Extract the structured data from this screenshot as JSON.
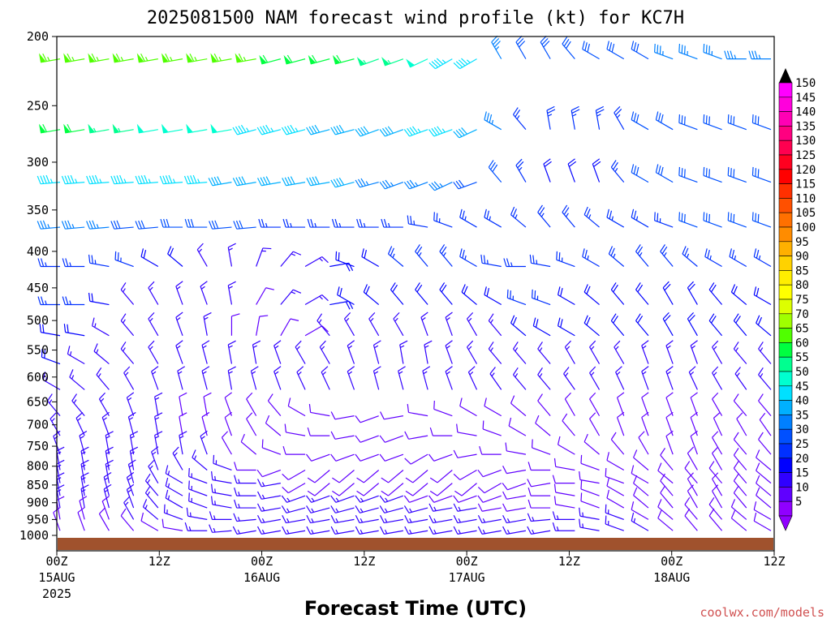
{
  "chart_data": {
    "type": "wind_barbs",
    "title": "2025081500 NAM forecast wind profile (kt) for KC7H",
    "xlabel": "Forecast Time (UTC)",
    "ylabel": "",
    "credit": "coolwx.com/models",
    "y_scale": "log-pressure (hPa), inverted",
    "y_ticks": [
      "200",
      "250",
      "300",
      "350",
      "400",
      "450",
      "500",
      "550",
      "600",
      "650",
      "700",
      "750",
      "800",
      "850",
      "900",
      "950",
      "1000"
    ],
    "x_ticks": [
      {
        "hour": 0,
        "line1": "00Z",
        "line2": "15AUG",
        "line3": "2025"
      },
      {
        "hour": 12,
        "line1": "12Z",
        "line2": "",
        "line3": ""
      },
      {
        "hour": 24,
        "line1": "00Z",
        "line2": "16AUG",
        "line3": ""
      },
      {
        "hour": 36,
        "line1": "12Z",
        "line2": "",
        "line3": ""
      },
      {
        "hour": 48,
        "line1": "00Z",
        "line2": "17AUG",
        "line3": ""
      },
      {
        "hour": 60,
        "line1": "12Z",
        "line2": "",
        "line3": ""
      },
      {
        "hour": 72,
        "line1": "00Z",
        "line2": "18AUG",
        "line3": ""
      },
      {
        "hour": 84,
        "line1": "12Z",
        "line2": "",
        "line3": ""
      }
    ],
    "colorbar": {
      "labels": [
        "150",
        "145",
        "140",
        "135",
        "130",
        "125",
        "120",
        "115",
        "110",
        "105",
        "100",
        "95",
        "90",
        "85",
        "80",
        "75",
        "70",
        "65",
        "60",
        "55",
        "50",
        "45",
        "40",
        "35",
        "30",
        "25",
        "20",
        "15",
        "10",
        "5"
      ],
      "colors": [
        "#ff00ff",
        "#ff00dc",
        "#ff00b4",
        "#ff0080",
        "#ff0050",
        "#ff0020",
        "#ff0000",
        "#ff3000",
        "#ff5000",
        "#ff7000",
        "#ff8c00",
        "#ffb000",
        "#ffd200",
        "#ffee00",
        "#ffff00",
        "#ddff00",
        "#a0ff00",
        "#50ff00",
        "#00ff40",
        "#00ff90",
        "#00ffd0",
        "#00e0ff",
        "#00b0ff",
        "#0080ff",
        "#0050ff",
        "#0030ff",
        "#0000ff",
        "#3000ff",
        "#6000ff",
        "#9000ff"
      ]
    },
    "terrain_color": "#a0522d",
    "levels": [
      {
        "p": 215,
        "spd": [
          65,
          65,
          65,
          65,
          65,
          65,
          65,
          65,
          65,
          60,
          60,
          60,
          60,
          55,
          55,
          50,
          45,
          45,
          35,
          30,
          30,
          30,
          30,
          30,
          30,
          35,
          35,
          35,
          35,
          35
        ],
        "dir": [
          260,
          260,
          260,
          260,
          260,
          260,
          260,
          260,
          260,
          255,
          255,
          255,
          255,
          250,
          250,
          245,
          240,
          240,
          330,
          330,
          330,
          320,
          300,
          300,
          300,
          290,
          290,
          290,
          270,
          270
        ]
      },
      {
        "p": 270,
        "spd": [
          60,
          60,
          55,
          55,
          50,
          50,
          50,
          50,
          45,
          45,
          45,
          40,
          40,
          40,
          40,
          45,
          45,
          40,
          35,
          25,
          25,
          25,
          25,
          25,
          30,
          30,
          30,
          30,
          30,
          30
        ],
        "dir": [
          260,
          260,
          260,
          260,
          260,
          260,
          260,
          260,
          255,
          255,
          255,
          255,
          255,
          250,
          250,
          250,
          250,
          245,
          300,
          320,
          350,
          350,
          350,
          330,
          300,
          300,
          290,
          290,
          290,
          290
        ]
      },
      {
        "p": 320,
        "spd": [
          45,
          45,
          45,
          45,
          45,
          45,
          45,
          40,
          40,
          40,
          40,
          40,
          40,
          35,
          35,
          35,
          35,
          30,
          30,
          25,
          20,
          20,
          20,
          25,
          30,
          30,
          30,
          30,
          30,
          30
        ],
        "dir": [
          265,
          265,
          265,
          265,
          265,
          265,
          265,
          260,
          260,
          260,
          260,
          260,
          255,
          255,
          250,
          250,
          245,
          250,
          320,
          330,
          340,
          340,
          340,
          320,
          300,
          300,
          290,
          290,
          290,
          290
        ]
      },
      {
        "p": 370,
        "spd": [
          35,
          35,
          35,
          30,
          30,
          30,
          30,
          30,
          30,
          25,
          25,
          25,
          25,
          25,
          25,
          25,
          25,
          25,
          25,
          25,
          25,
          25,
          25,
          25,
          25,
          25,
          30,
          30,
          30,
          30
        ],
        "dir": [
          265,
          265,
          265,
          265,
          265,
          270,
          270,
          265,
          265,
          270,
          270,
          270,
          270,
          270,
          270,
          280,
          290,
          300,
          300,
          310,
          320,
          320,
          310,
          300,
          300,
          290,
          290,
          290,
          290,
          290
        ]
      },
      {
        "p": 420,
        "spd": [
          25,
          25,
          25,
          25,
          20,
          20,
          15,
          15,
          15,
          15,
          15,
          20,
          20,
          20,
          25,
          25,
          25,
          25,
          25,
          25,
          25,
          25,
          25,
          25,
          25,
          25,
          25,
          25,
          25,
          25
        ],
        "dir": [
          270,
          270,
          280,
          290,
          300,
          310,
          330,
          350,
          20,
          40,
          60,
          80,
          290,
          300,
          310,
          320,
          320,
          300,
          280,
          270,
          280,
          290,
          300,
          310,
          320,
          320,
          310,
          300,
          300,
          300
        ]
      },
      {
        "p": 475,
        "spd": [
          25,
          25,
          20,
          15,
          15,
          15,
          15,
          15,
          10,
          15,
          15,
          20,
          20,
          20,
          20,
          20,
          20,
          20,
          20,
          25,
          25,
          20,
          20,
          20,
          20,
          20,
          20,
          20,
          20,
          20
        ],
        "dir": [
          270,
          270,
          280,
          320,
          330,
          340,
          340,
          350,
          30,
          40,
          60,
          80,
          300,
          310,
          320,
          320,
          320,
          310,
          300,
          290,
          290,
          300,
          310,
          320,
          320,
          330,
          330,
          320,
          310,
          300
        ]
      },
      {
        "p": 525,
        "spd": [
          20,
          20,
          15,
          15,
          15,
          15,
          15,
          10,
          10,
          10,
          10,
          15,
          15,
          15,
          15,
          15,
          15,
          15,
          15,
          20,
          20,
          20,
          20,
          20,
          20,
          20,
          20,
          20,
          20,
          20
        ],
        "dir": [
          280,
          280,
          300,
          320,
          330,
          340,
          350,
          0,
          10,
          30,
          60,
          320,
          330,
          330,
          330,
          340,
          340,
          330,
          320,
          310,
          300,
          300,
          310,
          320,
          320,
          330,
          330,
          320,
          320,
          310
        ]
      },
      {
        "p": 575,
        "spd": [
          20,
          15,
          15,
          15,
          15,
          15,
          15,
          15,
          15,
          15,
          15,
          15,
          15,
          15,
          15,
          15,
          15,
          15,
          15,
          15,
          15,
          15,
          15,
          15,
          15,
          15,
          15,
          15,
          15,
          15
        ],
        "dir": [
          290,
          300,
          310,
          320,
          330,
          340,
          345,
          350,
          350,
          340,
          330,
          330,
          340,
          345,
          350,
          350,
          340,
          330,
          320,
          320,
          320,
          330,
          330,
          330,
          340,
          340,
          340,
          330,
          320,
          320
        ]
      },
      {
        "p": 625,
        "spd": [
          15,
          15,
          15,
          15,
          15,
          15,
          15,
          15,
          15,
          15,
          15,
          15,
          15,
          15,
          15,
          15,
          15,
          15,
          15,
          15,
          15,
          15,
          15,
          15,
          15,
          15,
          15,
          15,
          15,
          15
        ],
        "dir": [
          300,
          310,
          320,
          330,
          340,
          345,
          345,
          350,
          345,
          340,
          335,
          335,
          340,
          345,
          345,
          345,
          340,
          335,
          325,
          320,
          320,
          325,
          330,
          335,
          340,
          340,
          335,
          330,
          325,
          320
        ]
      },
      {
        "p": 680,
        "spd": [
          15,
          15,
          15,
          15,
          15,
          10,
          10,
          10,
          10,
          10,
          10,
          10,
          10,
          10,
          10,
          10,
          10,
          10,
          10,
          10,
          10,
          10,
          10,
          10,
          10,
          10,
          10,
          10,
          10,
          10
        ],
        "dir": [
          320,
          320,
          330,
          340,
          350,
          350,
          350,
          340,
          330,
          320,
          300,
          280,
          260,
          250,
          260,
          280,
          290,
          300,
          300,
          310,
          320,
          330,
          330,
          340,
          340,
          340,
          340,
          330,
          320,
          320
        ]
      },
      {
        "p": 725,
        "spd": [
          15,
          15,
          15,
          15,
          15,
          10,
          10,
          10,
          10,
          10,
          10,
          10,
          10,
          10,
          10,
          10,
          10,
          10,
          10,
          10,
          10,
          10,
          10,
          10,
          10,
          10,
          10,
          10,
          10,
          10
        ],
        "dir": [
          330,
          335,
          340,
          345,
          350,
          350,
          345,
          340,
          330,
          310,
          280,
          270,
          260,
          250,
          250,
          260,
          270,
          280,
          290,
          300,
          310,
          320,
          330,
          340,
          340,
          340,
          340,
          335,
          330,
          325
        ]
      },
      {
        "p": 770,
        "spd": [
          15,
          15,
          15,
          15,
          15,
          15,
          15,
          10,
          10,
          10,
          10,
          10,
          10,
          10,
          10,
          10,
          10,
          10,
          10,
          10,
          10,
          10,
          10,
          10,
          10,
          10,
          10,
          10,
          10,
          10
        ],
        "dir": [
          340,
          345,
          350,
          350,
          350,
          350,
          340,
          330,
          310,
          290,
          270,
          250,
          250,
          250,
          250,
          240,
          250,
          260,
          270,
          280,
          290,
          300,
          310,
          320,
          330,
          340,
          340,
          330,
          320,
          320
        ]
      },
      {
        "p": 810,
        "spd": [
          15,
          15,
          15,
          15,
          15,
          15,
          15,
          15,
          10,
          10,
          10,
          10,
          10,
          10,
          10,
          10,
          10,
          10,
          10,
          10,
          10,
          10,
          10,
          10,
          10,
          10,
          10,
          10,
          10,
          10
        ],
        "dir": [
          350,
          350,
          350,
          350,
          340,
          330,
          310,
          290,
          270,
          250,
          240,
          230,
          230,
          230,
          230,
          230,
          230,
          240,
          250,
          260,
          270,
          280,
          290,
          300,
          310,
          320,
          330,
          330,
          320,
          310
        ]
      },
      {
        "p": 845,
        "spd": [
          15,
          15,
          15,
          15,
          15,
          15,
          15,
          15,
          15,
          15,
          10,
          10,
          10,
          10,
          10,
          10,
          10,
          10,
          10,
          10,
          10,
          10,
          10,
          10,
          10,
          10,
          10,
          10,
          10,
          10
        ],
        "dir": [
          350,
          350,
          350,
          345,
          330,
          300,
          290,
          280,
          270,
          260,
          240,
          230,
          230,
          230,
          230,
          230,
          230,
          230,
          240,
          250,
          260,
          270,
          280,
          290,
          300,
          310,
          320,
          320,
          320,
          310
        ]
      },
      {
        "p": 880,
        "spd": [
          15,
          15,
          15,
          15,
          15,
          15,
          15,
          15,
          15,
          15,
          15,
          15,
          15,
          15,
          15,
          10,
          10,
          10,
          10,
          10,
          10,
          10,
          10,
          10,
          10,
          10,
          10,
          10,
          10,
          10
        ],
        "dir": [
          350,
          350,
          345,
          340,
          320,
          300,
          290,
          280,
          270,
          260,
          250,
          250,
          250,
          250,
          250,
          250,
          250,
          250,
          250,
          260,
          270,
          280,
          290,
          300,
          310,
          320,
          330,
          330,
          320,
          310
        ]
      },
      {
        "p": 915,
        "spd": [
          15,
          15,
          15,
          15,
          15,
          15,
          15,
          15,
          15,
          15,
          15,
          15,
          15,
          15,
          15,
          15,
          15,
          15,
          10,
          10,
          10,
          10,
          10,
          10,
          10,
          10,
          10,
          10,
          10,
          10
        ],
        "dir": [
          350,
          350,
          345,
          340,
          320,
          300,
          290,
          280,
          270,
          260,
          255,
          255,
          255,
          255,
          255,
          255,
          260,
          260,
          260,
          260,
          270,
          280,
          290,
          300,
          310,
          320,
          330,
          330,
          320,
          310
        ]
      },
      {
        "p": 950,
        "spd": [
          10,
          10,
          10,
          15,
          15,
          15,
          15,
          15,
          15,
          15,
          15,
          15,
          15,
          15,
          15,
          15,
          15,
          15,
          15,
          15,
          15,
          15,
          15,
          15,
          10,
          10,
          10,
          10,
          10,
          10
        ],
        "dir": [
          350,
          345,
          340,
          330,
          310,
          290,
          280,
          270,
          265,
          260,
          260,
          260,
          260,
          260,
          260,
          260,
          260,
          260,
          260,
          260,
          265,
          270,
          280,
          290,
          300,
          310,
          320,
          320,
          310,
          300
        ]
      },
      {
        "p": 985,
        "spd": [
          10,
          10,
          10,
          10,
          10,
          10,
          15,
          15,
          15,
          15,
          15,
          15,
          15,
          15,
          15,
          15,
          15,
          15,
          15,
          15,
          15,
          15,
          15,
          15,
          15,
          10,
          10,
          10,
          10,
          10
        ],
        "dir": [
          340,
          340,
          330,
          320,
          300,
          280,
          270,
          265,
          260,
          260,
          260,
          260,
          260,
          260,
          260,
          260,
          260,
          260,
          260,
          260,
          260,
          270,
          280,
          290,
          300,
          310,
          320,
          320,
          310,
          300
        ]
      }
    ]
  }
}
